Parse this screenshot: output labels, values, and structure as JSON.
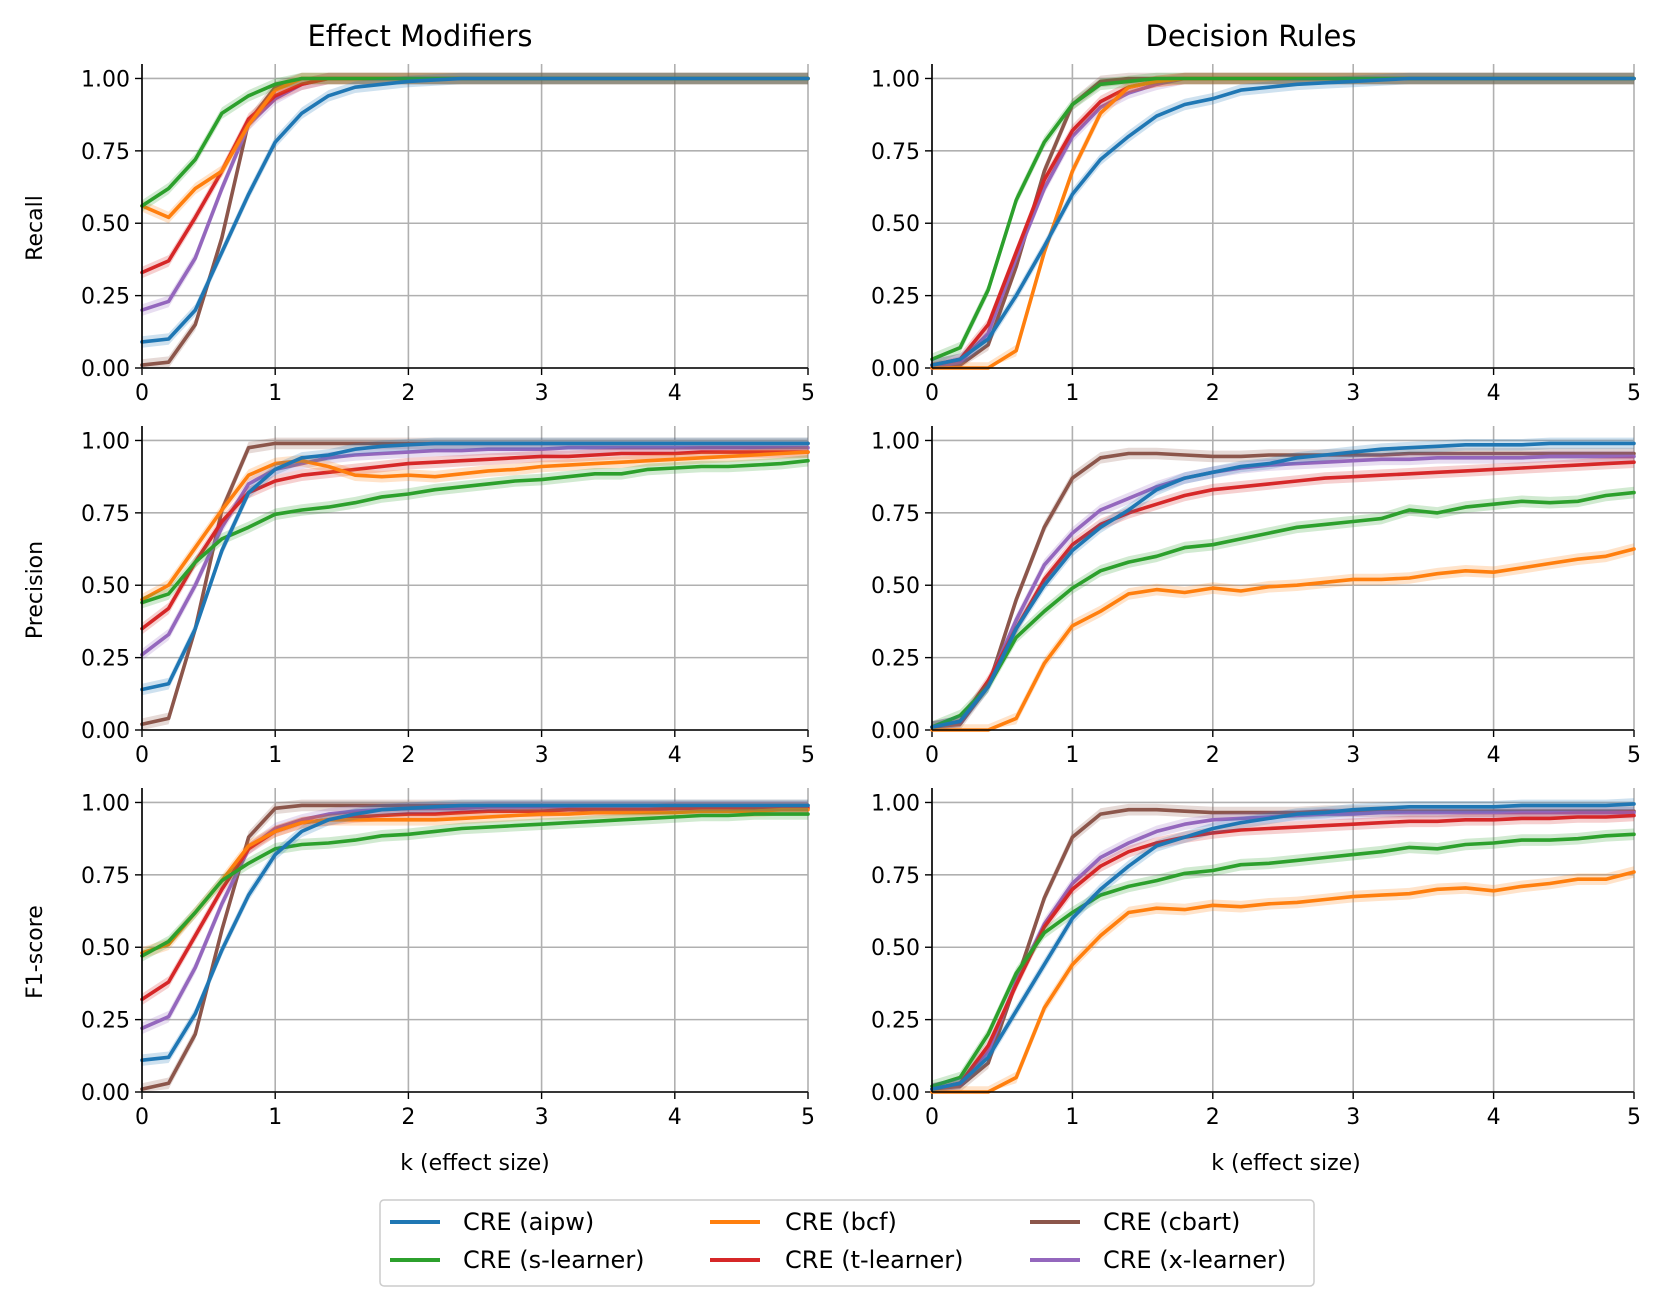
{
  "chart_data": {
    "type": "line",
    "column_titles": [
      "Effect Modifiers",
      "Decision Rules"
    ],
    "row_labels": [
      "Recall",
      "Precision",
      "F1-score"
    ],
    "xlabel": "k (effect size)",
    "xlim": [
      0,
      5
    ],
    "ylim": [
      0,
      1.05
    ],
    "x_ticks": [
      "0",
      "1",
      "2",
      "3",
      "4",
      "5"
    ],
    "y_ticks": [
      "0.00",
      "0.25",
      "0.50",
      "0.75",
      "1.00"
    ],
    "x": [
      0,
      0.2,
      0.4,
      0.6,
      0.8,
      1.0,
      1.2,
      1.4,
      1.6,
      1.8,
      2.0,
      2.2,
      2.4,
      2.6,
      2.8,
      3.0,
      3.2,
      3.4,
      3.6,
      3.8,
      4.0,
      4.2,
      4.4,
      4.6,
      4.8,
      5.0
    ],
    "series_info": [
      {
        "key": "aipw",
        "name": "CRE (aipw)",
        "color": "#1f77b4"
      },
      {
        "key": "s",
        "name": "CRE (s-learner)",
        "color": "#2ca02c"
      },
      {
        "key": "bcf",
        "name": "CRE (bcf)",
        "color": "#ff7f0e"
      },
      {
        "key": "t",
        "name": "CRE (t-learner)",
        "color": "#d62728"
      },
      {
        "key": "cbart",
        "name": "CRE (cbart)",
        "color": "#8c564b"
      },
      {
        "key": "x",
        "name": "CRE (x-learner)",
        "color": "#9467bd"
      }
    ],
    "panels": [
      {
        "row": 0,
        "col": 0,
        "series": {
          "aipw": [
            0.09,
            0.1,
            0.2,
            0.4,
            0.6,
            0.78,
            0.88,
            0.94,
            0.97,
            0.98,
            0.99,
            0.995,
            1,
            1,
            1,
            1,
            1,
            1,
            1,
            1,
            1,
            1,
            1,
            1,
            1,
            1
          ],
          "s": [
            0.56,
            0.62,
            0.72,
            0.88,
            0.94,
            0.98,
            1,
            1,
            1,
            1,
            1,
            1,
            1,
            1,
            1,
            1,
            1,
            1,
            1,
            1,
            1,
            1,
            1,
            1,
            1,
            1
          ],
          "bcf": [
            0.56,
            0.52,
            0.62,
            0.68,
            0.84,
            0.96,
            1,
            1,
            1,
            1,
            1,
            1,
            1,
            1,
            1,
            1,
            1,
            1,
            1,
            1,
            1,
            1,
            1,
            1,
            1,
            1
          ],
          "t": [
            0.33,
            0.37,
            0.52,
            0.68,
            0.86,
            0.94,
            0.98,
            1,
            1,
            1,
            1,
            1,
            1,
            1,
            1,
            1,
            1,
            1,
            1,
            1,
            1,
            1,
            1,
            1,
            1,
            1
          ],
          "cbart": [
            0.01,
            0.02,
            0.15,
            0.45,
            0.85,
            0.97,
            1,
            1,
            1,
            1,
            1,
            1,
            1,
            1,
            1,
            1,
            1,
            1,
            1,
            1,
            1,
            1,
            1,
            1,
            1,
            1
          ],
          "x": [
            0.2,
            0.23,
            0.38,
            0.62,
            0.84,
            0.93,
            0.98,
            1,
            1,
            1,
            1,
            1,
            1,
            1,
            1,
            1,
            1,
            1,
            1,
            1,
            1,
            1,
            1,
            1,
            1,
            1
          ]
        }
      },
      {
        "row": 0,
        "col": 1,
        "series": {
          "aipw": [
            0.01,
            0.03,
            0.1,
            0.25,
            0.42,
            0.6,
            0.72,
            0.8,
            0.87,
            0.91,
            0.93,
            0.96,
            0.97,
            0.98,
            0.985,
            0.99,
            0.995,
            1,
            1,
            1,
            1,
            1,
            1,
            1,
            1,
            1
          ],
          "s": [
            0.03,
            0.07,
            0.27,
            0.58,
            0.78,
            0.91,
            0.98,
            0.99,
            1,
            1,
            1,
            1,
            1,
            1,
            1,
            1,
            1,
            1,
            1,
            1,
            1,
            1,
            1,
            1,
            1,
            1
          ],
          "bcf": [
            0.0,
            0.0,
            0.0,
            0.06,
            0.4,
            0.68,
            0.88,
            0.97,
            0.99,
            1,
            1,
            1,
            1,
            1,
            1,
            1,
            1,
            1,
            1,
            1,
            1,
            1,
            1,
            1,
            1,
            1
          ],
          "t": [
            0.01,
            0.03,
            0.15,
            0.4,
            0.65,
            0.82,
            0.92,
            0.97,
            0.99,
            1,
            1,
            1,
            1,
            1,
            1,
            1,
            1,
            1,
            1,
            1,
            1,
            1,
            1,
            1,
            1,
            1
          ],
          "cbart": [
            0.0,
            0.01,
            0.08,
            0.35,
            0.68,
            0.91,
            0.99,
            1,
            1,
            1,
            1,
            1,
            1,
            1,
            1,
            1,
            1,
            1,
            1,
            1,
            1,
            1,
            1,
            1,
            1,
            1
          ],
          "x": [
            0.0,
            0.02,
            0.12,
            0.38,
            0.62,
            0.8,
            0.9,
            0.95,
            0.98,
            1,
            1,
            1,
            1,
            1,
            1,
            1,
            1,
            1,
            1,
            1,
            1,
            1,
            1,
            1,
            1,
            1
          ]
        }
      },
      {
        "row": 1,
        "col": 0,
        "series": {
          "aipw": [
            0.14,
            0.16,
            0.35,
            0.62,
            0.82,
            0.9,
            0.94,
            0.95,
            0.97,
            0.98,
            0.985,
            0.99,
            0.99,
            0.99,
            0.99,
            0.99,
            0.99,
            0.99,
            0.99,
            0.99,
            0.99,
            0.99,
            0.99,
            0.99,
            0.99,
            0.99
          ],
          "s": [
            0.44,
            0.47,
            0.58,
            0.66,
            0.7,
            0.745,
            0.76,
            0.77,
            0.785,
            0.805,
            0.815,
            0.83,
            0.84,
            0.85,
            0.86,
            0.865,
            0.875,
            0.885,
            0.885,
            0.9,
            0.905,
            0.91,
            0.91,
            0.915,
            0.92,
            0.93
          ],
          "bcf": [
            0.45,
            0.5,
            0.63,
            0.76,
            0.88,
            0.92,
            0.93,
            0.91,
            0.88,
            0.875,
            0.88,
            0.875,
            0.885,
            0.895,
            0.9,
            0.91,
            0.915,
            0.92,
            0.925,
            0.93,
            0.935,
            0.94,
            0.945,
            0.95,
            0.955,
            0.96
          ],
          "t": [
            0.35,
            0.42,
            0.58,
            0.72,
            0.82,
            0.86,
            0.88,
            0.89,
            0.9,
            0.91,
            0.92,
            0.925,
            0.93,
            0.935,
            0.94,
            0.945,
            0.945,
            0.95,
            0.955,
            0.955,
            0.955,
            0.96,
            0.96,
            0.96,
            0.96,
            0.96
          ],
          "cbart": [
            0.02,
            0.04,
            0.35,
            0.76,
            0.975,
            0.99,
            0.99,
            0.99,
            0.99,
            0.99,
            0.99,
            0.99,
            0.99,
            0.99,
            0.99,
            0.99,
            0.99,
            0.99,
            0.99,
            0.99,
            0.99,
            0.99,
            0.99,
            0.99,
            0.99,
            0.99
          ],
          "x": [
            0.26,
            0.33,
            0.5,
            0.7,
            0.85,
            0.9,
            0.92,
            0.94,
            0.95,
            0.955,
            0.96,
            0.965,
            0.965,
            0.97,
            0.97,
            0.97,
            0.975,
            0.975,
            0.975,
            0.975,
            0.975,
            0.975,
            0.975,
            0.975,
            0.975,
            0.975
          ]
        }
      },
      {
        "row": 1,
        "col": 1,
        "series": {
          "aipw": [
            0.01,
            0.03,
            0.15,
            0.35,
            0.5,
            0.62,
            0.7,
            0.76,
            0.83,
            0.87,
            0.89,
            0.91,
            0.92,
            0.94,
            0.95,
            0.96,
            0.97,
            0.975,
            0.98,
            0.985,
            0.985,
            0.985,
            0.99,
            0.99,
            0.99,
            0.99
          ],
          "s": [
            0.01,
            0.05,
            0.15,
            0.32,
            0.41,
            0.49,
            0.55,
            0.58,
            0.6,
            0.63,
            0.64,
            0.66,
            0.68,
            0.7,
            0.71,
            0.72,
            0.73,
            0.76,
            0.75,
            0.77,
            0.78,
            0.79,
            0.785,
            0.79,
            0.81,
            0.82
          ],
          "bcf": [
            0.0,
            0.0,
            0.0,
            0.04,
            0.23,
            0.36,
            0.41,
            0.47,
            0.485,
            0.475,
            0.49,
            0.48,
            0.495,
            0.5,
            0.51,
            0.52,
            0.52,
            0.525,
            0.54,
            0.55,
            0.545,
            0.56,
            0.575,
            0.59,
            0.6,
            0.625
          ],
          "t": [
            0.01,
            0.03,
            0.17,
            0.35,
            0.52,
            0.64,
            0.71,
            0.75,
            0.78,
            0.81,
            0.83,
            0.84,
            0.85,
            0.86,
            0.87,
            0.875,
            0.88,
            0.885,
            0.89,
            0.895,
            0.9,
            0.905,
            0.91,
            0.915,
            0.92,
            0.925
          ],
          "cbart": [
            0.01,
            0.02,
            0.15,
            0.45,
            0.7,
            0.87,
            0.94,
            0.955,
            0.955,
            0.95,
            0.945,
            0.945,
            0.95,
            0.95,
            0.95,
            0.95,
            0.95,
            0.955,
            0.955,
            0.955,
            0.955,
            0.955,
            0.955,
            0.955,
            0.955,
            0.955
          ],
          "x": [
            0.01,
            0.03,
            0.16,
            0.38,
            0.57,
            0.68,
            0.76,
            0.8,
            0.84,
            0.87,
            0.89,
            0.905,
            0.915,
            0.92,
            0.925,
            0.93,
            0.935,
            0.935,
            0.94,
            0.94,
            0.94,
            0.94,
            0.945,
            0.945,
            0.945,
            0.945
          ]
        }
      },
      {
        "row": 2,
        "col": 0,
        "series": {
          "aipw": [
            0.11,
            0.12,
            0.27,
            0.49,
            0.68,
            0.82,
            0.9,
            0.94,
            0.96,
            0.975,
            0.98,
            0.985,
            0.99,
            0.99,
            0.99,
            0.99,
            0.99,
            0.99,
            0.99,
            0.99,
            0.99,
            0.99,
            0.99,
            0.99,
            0.99,
            0.99
          ],
          "s": [
            0.47,
            0.52,
            0.62,
            0.73,
            0.79,
            0.84,
            0.855,
            0.86,
            0.87,
            0.885,
            0.89,
            0.9,
            0.91,
            0.915,
            0.92,
            0.925,
            0.93,
            0.935,
            0.94,
            0.945,
            0.95,
            0.955,
            0.955,
            0.96,
            0.96,
            0.96
          ],
          "bcf": [
            0.48,
            0.51,
            0.62,
            0.73,
            0.85,
            0.9,
            0.93,
            0.94,
            0.94,
            0.94,
            0.94,
            0.94,
            0.945,
            0.95,
            0.955,
            0.96,
            0.96,
            0.965,
            0.965,
            0.965,
            0.965,
            0.97,
            0.97,
            0.97,
            0.975,
            0.975
          ],
          "t": [
            0.32,
            0.38,
            0.54,
            0.7,
            0.84,
            0.9,
            0.93,
            0.94,
            0.95,
            0.955,
            0.96,
            0.96,
            0.965,
            0.97,
            0.97,
            0.97,
            0.975,
            0.975,
            0.975,
            0.975,
            0.98,
            0.98,
            0.98,
            0.98,
            0.98,
            0.98
          ],
          "cbart": [
            0.01,
            0.03,
            0.2,
            0.56,
            0.88,
            0.98,
            0.99,
            0.99,
            0.99,
            0.99,
            0.99,
            0.99,
            0.99,
            0.99,
            0.99,
            0.99,
            0.99,
            0.99,
            0.99,
            0.99,
            0.99,
            0.99,
            0.99,
            0.99,
            0.99,
            0.99
          ],
          "x": [
            0.22,
            0.26,
            0.43,
            0.65,
            0.84,
            0.91,
            0.94,
            0.96,
            0.97,
            0.975,
            0.98,
            0.98,
            0.98,
            0.985,
            0.985,
            0.985,
            0.985,
            0.985,
            0.985,
            0.985,
            0.985,
            0.985,
            0.985,
            0.985,
            0.985,
            0.985
          ]
        }
      },
      {
        "row": 2,
        "col": 1,
        "series": {
          "aipw": [
            0.01,
            0.03,
            0.12,
            0.28,
            0.44,
            0.6,
            0.7,
            0.78,
            0.85,
            0.88,
            0.91,
            0.93,
            0.945,
            0.96,
            0.965,
            0.975,
            0.98,
            0.985,
            0.985,
            0.985,
            0.985,
            0.99,
            0.99,
            0.99,
            0.99,
            0.995
          ],
          "s": [
            0.02,
            0.05,
            0.2,
            0.41,
            0.55,
            0.62,
            0.68,
            0.71,
            0.73,
            0.755,
            0.765,
            0.785,
            0.79,
            0.8,
            0.81,
            0.82,
            0.83,
            0.845,
            0.84,
            0.855,
            0.86,
            0.87,
            0.87,
            0.875,
            0.885,
            0.89
          ],
          "bcf": [
            0.0,
            0.0,
            0.0,
            0.05,
            0.29,
            0.44,
            0.54,
            0.62,
            0.635,
            0.63,
            0.645,
            0.64,
            0.65,
            0.655,
            0.665,
            0.675,
            0.68,
            0.685,
            0.7,
            0.705,
            0.695,
            0.71,
            0.72,
            0.735,
            0.735,
            0.76
          ],
          "t": [
            0.01,
            0.03,
            0.16,
            0.37,
            0.57,
            0.7,
            0.78,
            0.83,
            0.86,
            0.88,
            0.895,
            0.905,
            0.91,
            0.915,
            0.92,
            0.925,
            0.93,
            0.935,
            0.935,
            0.94,
            0.94,
            0.945,
            0.945,
            0.95,
            0.95,
            0.955
          ],
          "cbart": [
            0.01,
            0.02,
            0.1,
            0.38,
            0.67,
            0.88,
            0.96,
            0.975,
            0.975,
            0.97,
            0.965,
            0.965,
            0.965,
            0.965,
            0.97,
            0.97,
            0.97,
            0.97,
            0.97,
            0.97,
            0.97,
            0.97,
            0.97,
            0.97,
            0.97,
            0.97
          ],
          "x": [
            0.01,
            0.03,
            0.14,
            0.38,
            0.58,
            0.72,
            0.81,
            0.86,
            0.9,
            0.925,
            0.94,
            0.945,
            0.95,
            0.955,
            0.96,
            0.96,
            0.965,
            0.965,
            0.965,
            0.965,
            0.965,
            0.965,
            0.965,
            0.965,
            0.965,
            0.965
          ]
        }
      }
    ],
    "legend": {
      "placement": "bottom-center",
      "columns": [
        [
          "CRE (aipw)",
          "CRE (s-learner)"
        ],
        [
          "CRE (bcf)",
          "CRE (t-learner)"
        ],
        [
          "CRE (cbart)",
          "CRE (x-learner)"
        ]
      ]
    },
    "grid": true
  }
}
